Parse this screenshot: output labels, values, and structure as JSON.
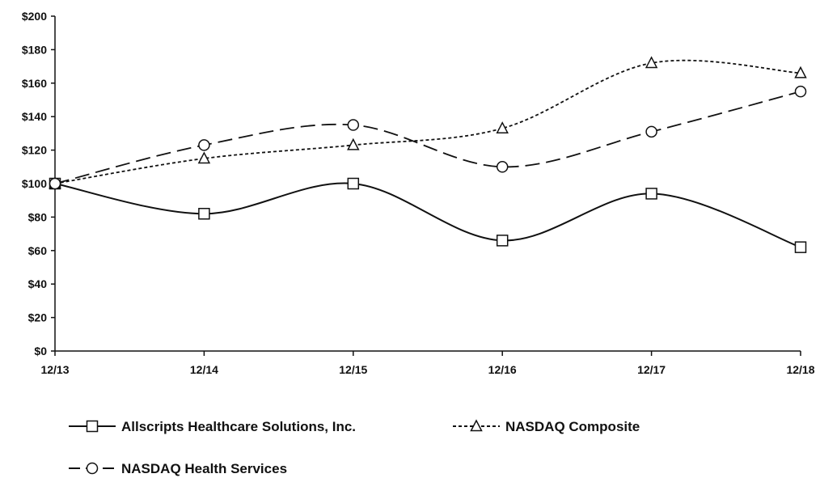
{
  "chart_data": {
    "type": "line",
    "categories": [
      "12/13",
      "12/14",
      "12/15",
      "12/16",
      "12/17",
      "12/18"
    ],
    "y_tick_labels": [
      "$0",
      "$20",
      "$40",
      "$60",
      "$80",
      "$100",
      "$120",
      "$140",
      "$160",
      "$180",
      "$200"
    ],
    "ylim": [
      0,
      200
    ],
    "y_step": 20,
    "grid": false,
    "legend_position": "bottom",
    "series": [
      {
        "name": "Allscripts Healthcare Solutions, Inc.",
        "values": [
          100,
          82,
          100,
          66,
          94,
          62
        ],
        "marker": "square",
        "dash": "solid",
        "color": "#111111"
      },
      {
        "name": "NASDAQ Composite",
        "values": [
          100,
          115,
          123,
          133,
          172,
          166
        ],
        "marker": "triangle",
        "dash": "dotted",
        "color": "#111111"
      },
      {
        "name": "NASDAQ Health Services",
        "values": [
          100,
          123,
          135,
          110,
          131,
          155
        ],
        "marker": "circle",
        "dash": "long-dash",
        "color": "#111111"
      }
    ]
  }
}
